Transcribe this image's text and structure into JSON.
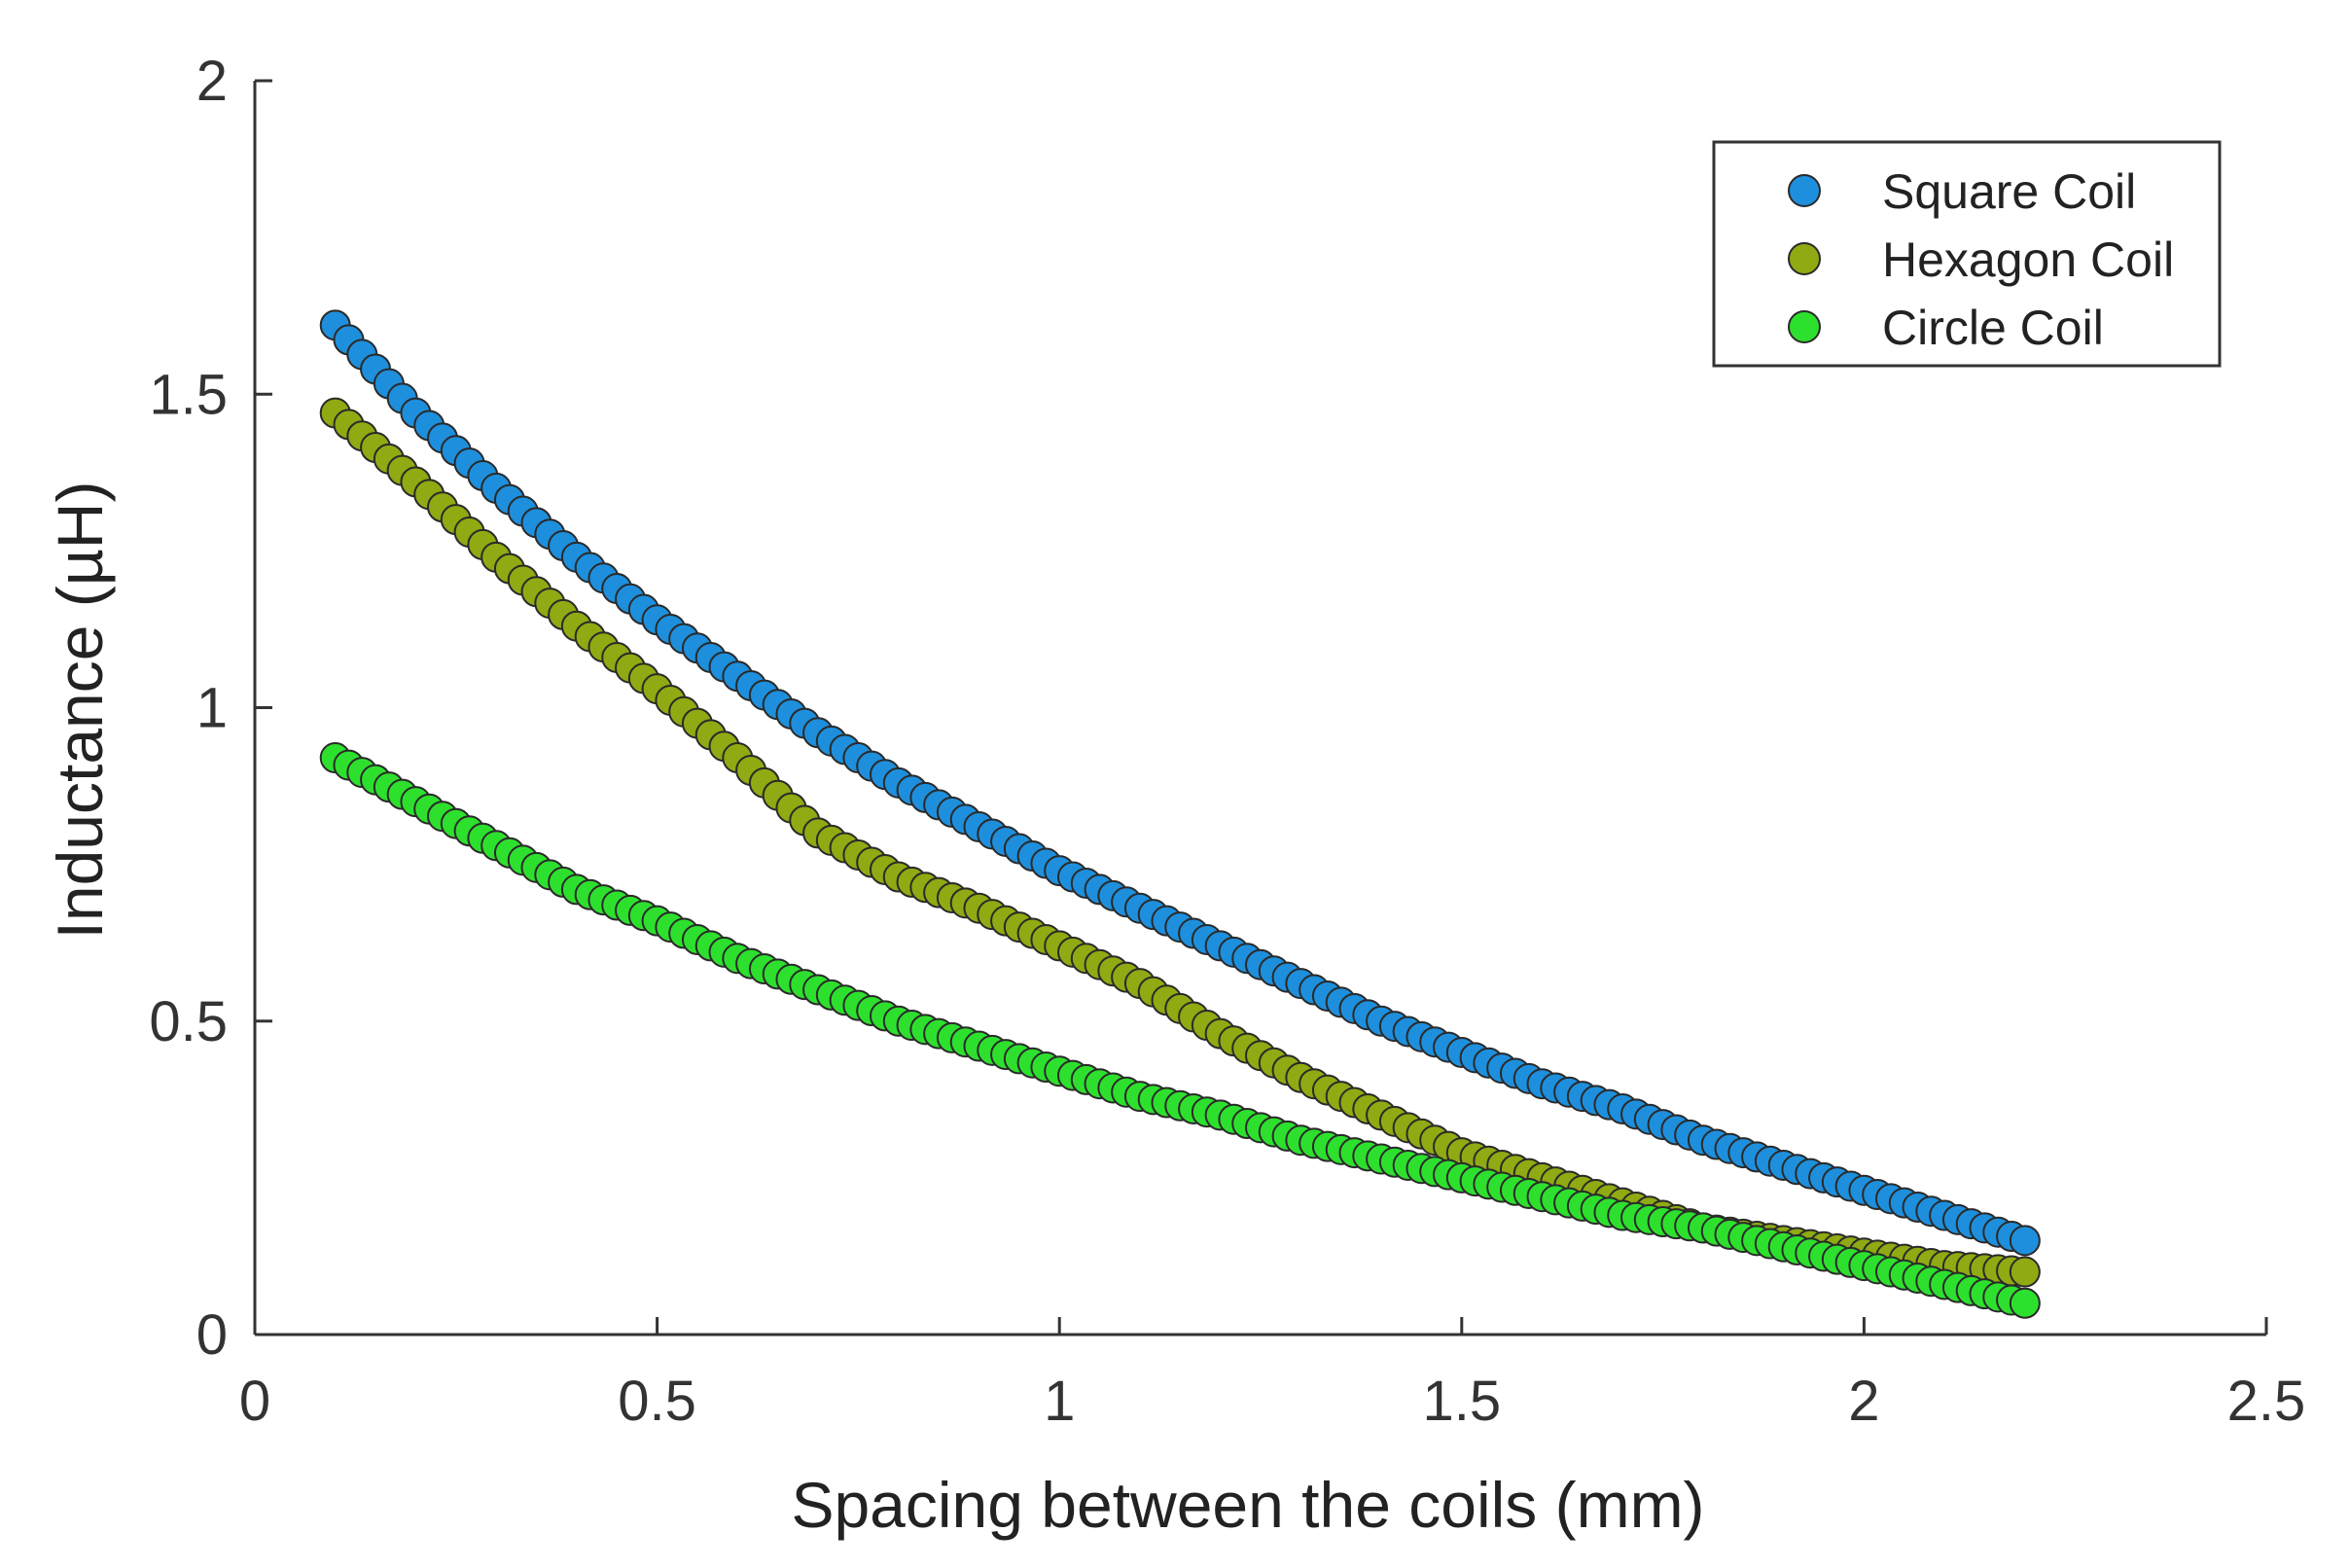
{
  "chart_data": {
    "type": "scatter",
    "title": "",
    "xlabel": "Spacing between the coils (mm)",
    "ylabel": "Inductance (µH)",
    "xlim": [
      0,
      2.5
    ],
    "ylim": [
      0,
      2
    ],
    "xticks": [
      0,
      0.5,
      1,
      1.5,
      2,
      2.5
    ],
    "xtick_labels": [
      "0",
      "0.5",
      "1",
      "1.5",
      "2",
      "2.5"
    ],
    "yticks": [
      0,
      0.5,
      1,
      1.5,
      2
    ],
    "ytick_labels": [
      "0",
      "0.5",
      "1",
      "1.5",
      "2"
    ],
    "grid": false,
    "legend_position": "top-right",
    "series": [
      {
        "name": "Square Coil",
        "color": "#1e8fdc",
        "x": [
          0.1,
          0.2,
          0.3,
          0.4,
          0.5,
          0.6,
          0.7,
          0.8,
          0.9,
          1.0,
          1.1,
          1.2,
          1.3,
          1.4,
          1.5,
          1.6,
          1.7,
          1.8,
          1.9,
          2.0,
          2.1,
          2.2
        ],
        "y": [
          1.61,
          1.47,
          1.35,
          1.24,
          1.14,
          1.05,
          0.96,
          0.88,
          0.81,
          0.74,
          0.68,
          0.62,
          0.56,
          0.5,
          0.45,
          0.4,
          0.36,
          0.31,
          0.27,
          0.23,
          0.19,
          0.15
        ]
      },
      {
        "name": "Hexagon Coil",
        "color": "#8faa12",
        "x": [
          0.1,
          0.2,
          0.3,
          0.4,
          0.5,
          0.6,
          0.7,
          0.8,
          0.9,
          1.0,
          1.1,
          1.2,
          1.3,
          1.4,
          1.5,
          1.6,
          1.7,
          1.8,
          1.9,
          2.0,
          2.1,
          2.2
        ],
        "y": [
          1.47,
          1.36,
          1.24,
          1.13,
          1.03,
          0.92,
          0.8,
          0.73,
          0.68,
          0.62,
          0.56,
          0.48,
          0.41,
          0.35,
          0.29,
          0.25,
          0.21,
          0.17,
          0.15,
          0.13,
          0.11,
          0.1
        ]
      },
      {
        "name": "Circle Coil",
        "color": "#2ee02e",
        "x": [
          0.1,
          0.2,
          0.3,
          0.4,
          0.5,
          0.6,
          0.7,
          0.8,
          0.9,
          1.0,
          1.1,
          1.2,
          1.3,
          1.4,
          1.5,
          1.6,
          1.7,
          1.8,
          1.9,
          2.0,
          2.1,
          2.2
        ],
        "y": [
          0.92,
          0.85,
          0.78,
          0.71,
          0.66,
          0.6,
          0.55,
          0.5,
          0.46,
          0.42,
          0.38,
          0.35,
          0.31,
          0.28,
          0.25,
          0.22,
          0.19,
          0.17,
          0.14,
          0.11,
          0.08,
          0.05
        ]
      }
    ]
  }
}
